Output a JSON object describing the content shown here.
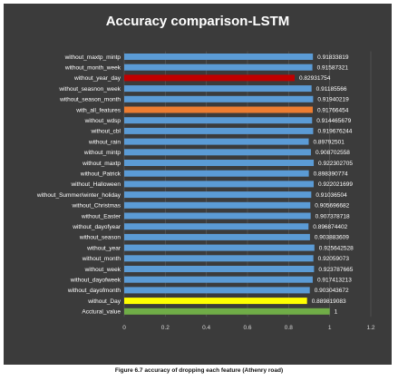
{
  "caption": "Figure 6.7 accuracy of dropping each feature (Athenry road)",
  "chart_data": {
    "type": "bar",
    "orientation": "horizontal",
    "title": "Accuracy comparison-LSTM",
    "xlabel": "",
    "ylabel": "",
    "xlim": [
      0,
      1.2
    ],
    "x_ticks": [
      "0",
      "0.2",
      "0.4",
      "0.6",
      "0.8",
      "1",
      "1.2"
    ],
    "grid": true,
    "legend": "none",
    "categories": [
      "without_maxtp_mintp",
      "without_month_week",
      "without_year_day",
      "without_seasnon_week",
      "without_season_month",
      "with_all_features",
      "without_wdsp",
      "without_cbl",
      "without_rain",
      "without_mintp",
      "without_maxtp",
      "without_Patrick",
      "without_Halloween",
      "without_Summer/winter_holiday",
      "without_Christmas",
      "without_Easter",
      "without_dayofyear",
      "without_season",
      "without_year",
      "without_month",
      "without_week",
      "without_dayofweek",
      "without_dayofmonth",
      "without_Day",
      "Acctural_value"
    ],
    "values": [
      0.91833819,
      0.91587321,
      0.82931754,
      0.91185566,
      0.91940219,
      0.91766454,
      0.914465679,
      0.919676244,
      0.89792501,
      0.908702558,
      0.922302705,
      0.898390774,
      0.922021699,
      0.91036504,
      0.905696682,
      0.907378718,
      0.896874402,
      0.903883609,
      0.925642528,
      0.92059073,
      0.923787665,
      0.917413213,
      0.903043672,
      0.889819083,
      1
    ],
    "value_labels": [
      "0.91833819",
      "0.91587321",
      "0.82931754",
      "0.91185566",
      "0.91940219",
      "0.91766454",
      "0.914465679",
      "0.919676244",
      "0.89792501",
      "0.908702558",
      "0.922302705",
      "0.898390774",
      "0.922021699",
      "0.91036504",
      "0.905696682",
      "0.907378718",
      "0.896874402",
      "0.903883609",
      "0.925642528",
      "0.92059073",
      "0.923787665",
      "0.917413213",
      "0.903043672",
      "0.889819083",
      "1"
    ],
    "colors": {
      "default": "#5b9bd5",
      "highlight_red": "#c00000",
      "highlight_orange": "#ed7d31",
      "highlight_yellow": "#ffff00",
      "highlight_green": "#70ad47",
      "background": "#3b3b3b",
      "text": "#ffffff",
      "grid": "#595959"
    },
    "bar_colors": [
      "#5b9bd5",
      "#5b9bd5",
      "#c00000",
      "#5b9bd5",
      "#5b9bd5",
      "#ed7d31",
      "#5b9bd5",
      "#5b9bd5",
      "#5b9bd5",
      "#5b9bd5",
      "#5b9bd5",
      "#5b9bd5",
      "#5b9bd5",
      "#5b9bd5",
      "#5b9bd5",
      "#5b9bd5",
      "#5b9bd5",
      "#5b9bd5",
      "#5b9bd5",
      "#5b9bd5",
      "#5b9bd5",
      "#5b9bd5",
      "#5b9bd5",
      "#ffff00",
      "#70ad47"
    ]
  }
}
